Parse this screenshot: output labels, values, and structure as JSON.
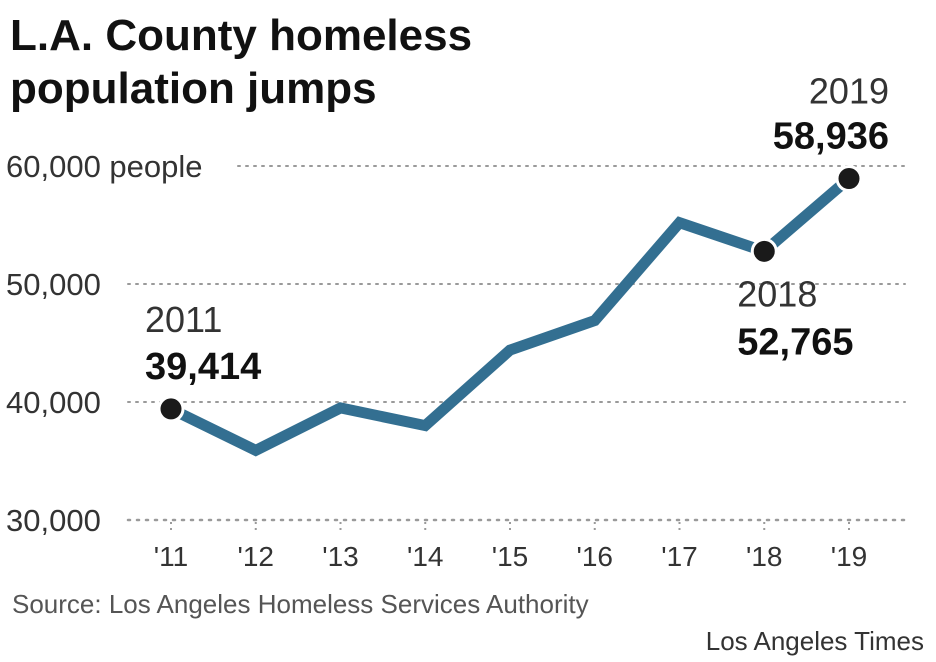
{
  "chart_data": {
    "type": "line",
    "title": "L.A. County homeless population jumps",
    "title_lines": [
      "L.A. County homeless",
      "population jumps"
    ],
    "x": [
      "'11",
      "'12",
      "'13",
      "'14",
      "'15",
      "'16",
      "'17",
      "'18",
      "'19"
    ],
    "series": [
      {
        "name": "Homeless population",
        "color": "#336f91",
        "values": [
          39414,
          35900,
          39500,
          38000,
          44400,
          46900,
          55200,
          52765,
          58936
        ]
      }
    ],
    "ylim": [
      30000,
      63000
    ],
    "yticks": [
      30000,
      40000,
      50000,
      60000
    ],
    "ytick_labels": [
      "30,000",
      "40,000",
      "50,000",
      "60,000 people"
    ],
    "annotations": [
      {
        "index": 0,
        "year": "2011",
        "value": "39,414"
      },
      {
        "index": 7,
        "year": "2018",
        "value": "52,765"
      },
      {
        "index": 8,
        "year": "2019",
        "value": "58,936"
      }
    ],
    "marker_color": "#1a1a1a",
    "grid": true,
    "source": "Source: Los Angeles Homeless Services Authority",
    "credit": "Los Angeles Times"
  }
}
